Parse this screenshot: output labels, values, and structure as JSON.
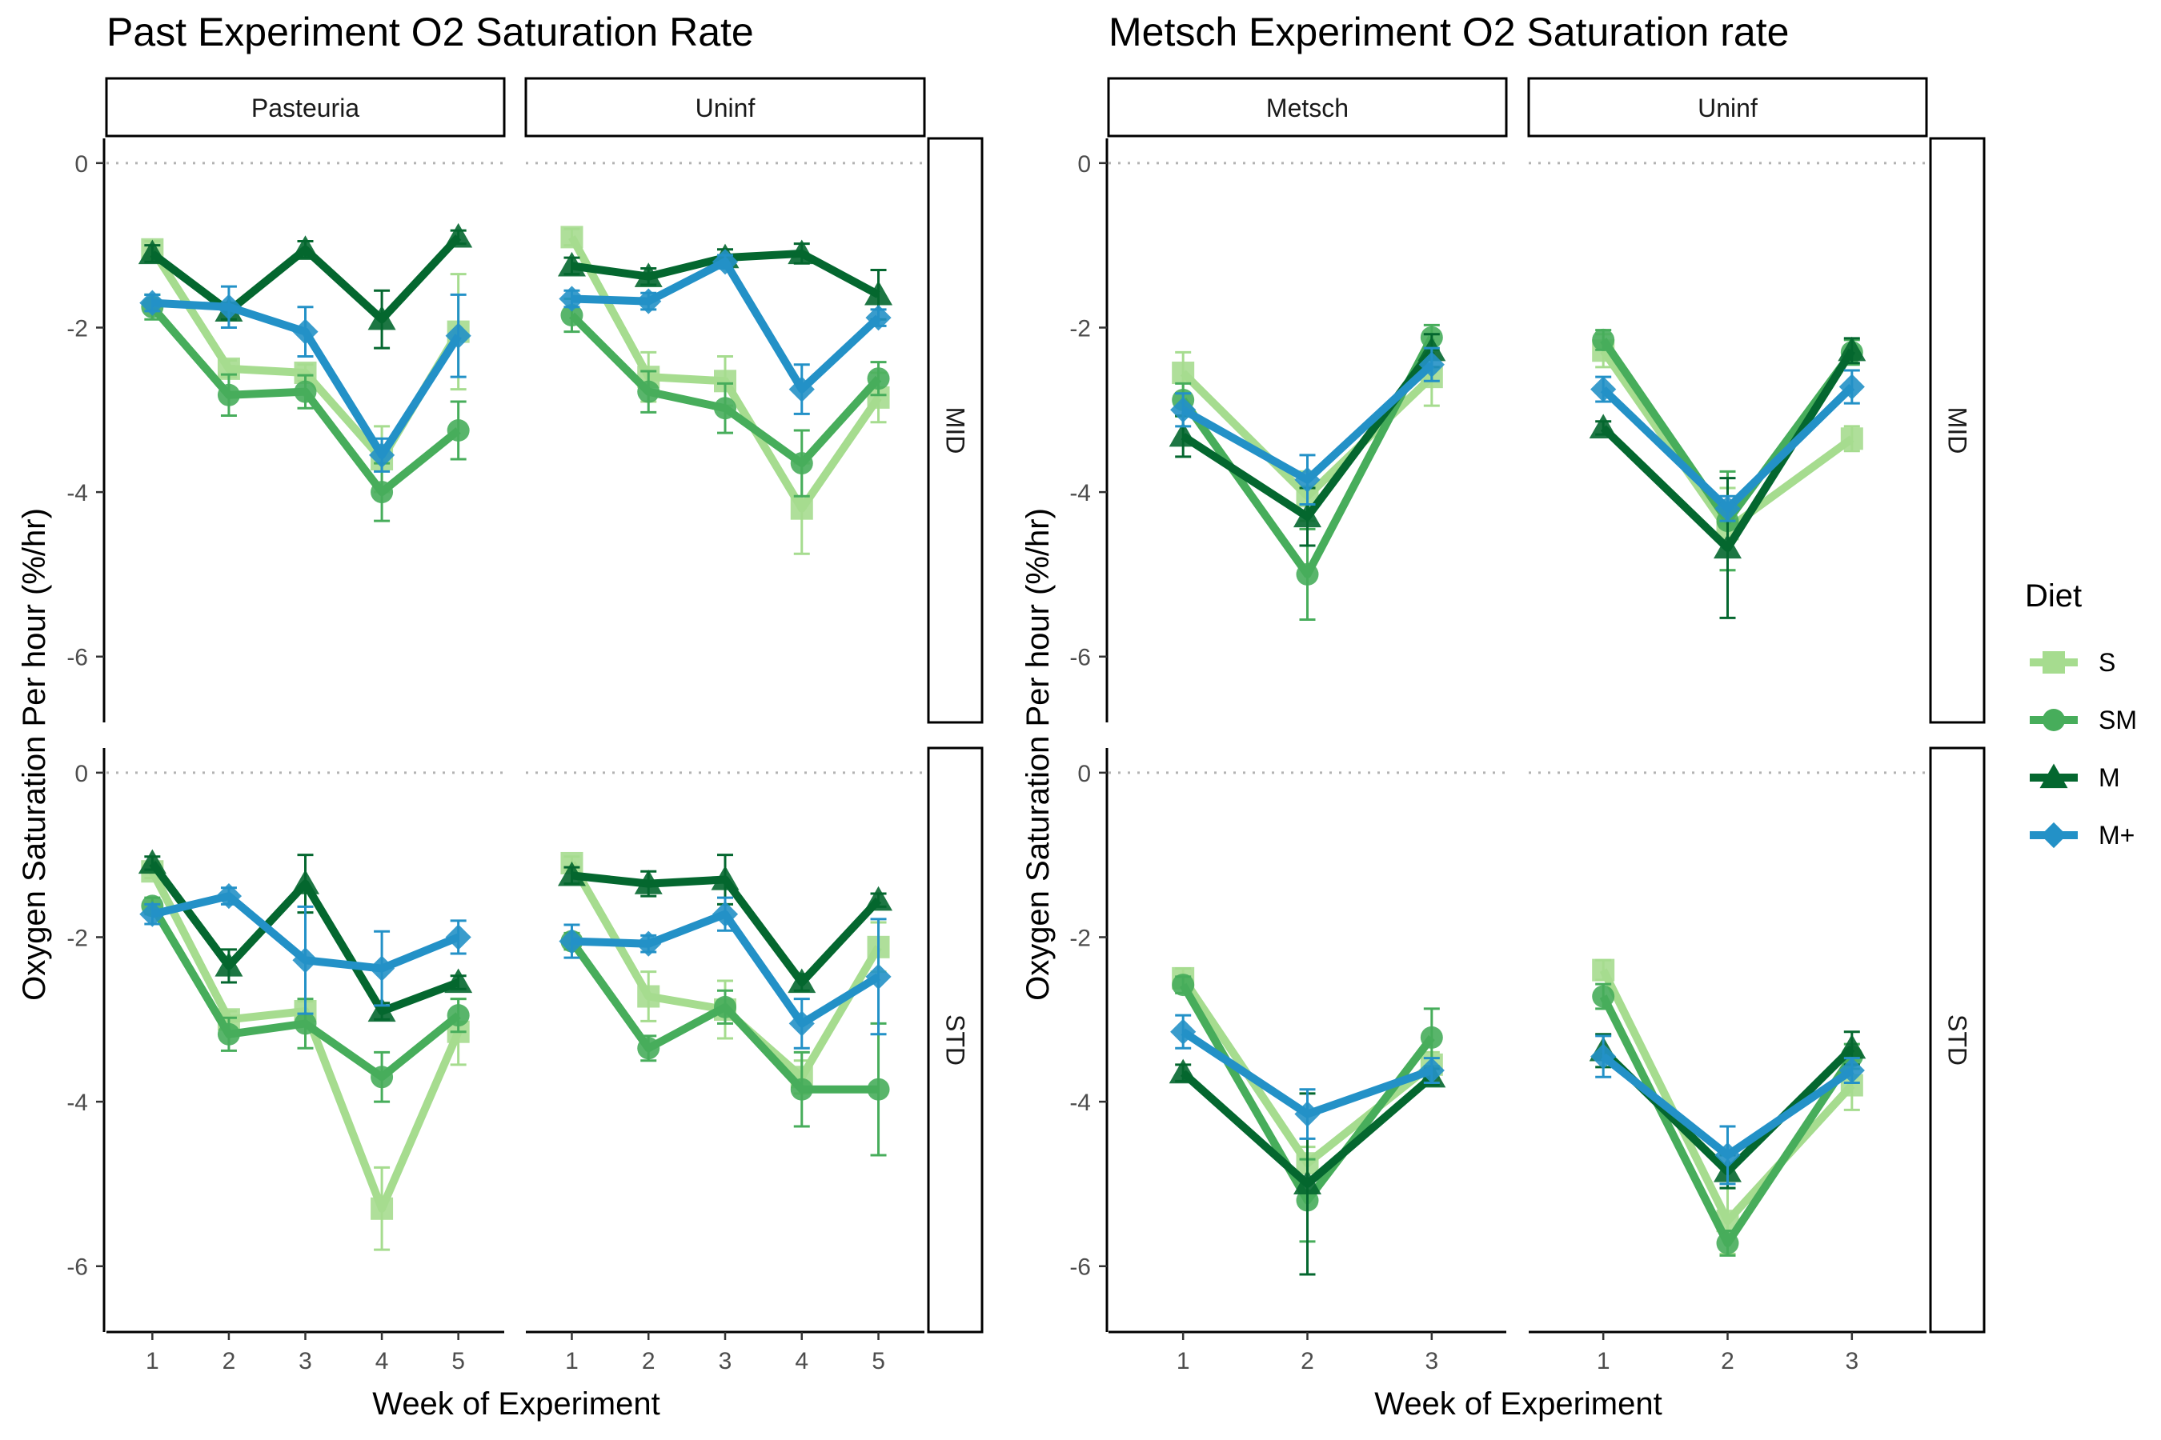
{
  "legend": {
    "title": "Diet",
    "items": [
      {
        "label": "S",
        "color": "#a6dc8f",
        "shape": "square"
      },
      {
        "label": "SM",
        "color": "#47ad5b",
        "shape": "circle"
      },
      {
        "label": "M",
        "color": "#04672f",
        "shape": "triangle"
      },
      {
        "label": "M+",
        "color": "#2391c7",
        "shape": "diamond"
      }
    ]
  },
  "chart_data": [
    {
      "type": "line",
      "title": "Past Experiment O2 Saturation Rate",
      "xlabel": "Week of Experiment",
      "ylabel": "Oxygen Saturation Per hour (%/hr)",
      "x": [
        1,
        2,
        3,
        4,
        5
      ],
      "ylim": [
        -6.8,
        0.3
      ],
      "yticks": [
        0,
        -2,
        -4,
        -6
      ],
      "reference_line": 0,
      "columns": [
        "Pasteuria",
        "Uninf"
      ],
      "rows": [
        "MID",
        "STD"
      ],
      "series_names": [
        "S",
        "SM",
        "M",
        "M+"
      ],
      "panels": [
        {
          "col": "Pasteuria",
          "row": "MID",
          "series": [
            {
              "name": "S",
              "values": [
                -1.05,
                -2.5,
                -2.55,
                -3.6,
                -2.05
              ],
              "errors": [
                0.1,
                0.1,
                0.1,
                0.4,
                0.7
              ]
            },
            {
              "name": "SM",
              "values": [
                -1.75,
                -2.82,
                -2.78,
                -4.0,
                -3.25
              ],
              "errors": [
                0.15,
                0.25,
                0.2,
                0.35,
                0.35
              ]
            },
            {
              "name": "M",
              "values": [
                -1.1,
                -1.8,
                -1.05,
                -1.9,
                -0.9
              ],
              "errors": [
                0.1,
                0.1,
                0.1,
                0.35,
                0.08
              ]
            },
            {
              "name": "M+",
              "values": [
                -1.7,
                -1.75,
                -2.05,
                -3.55,
                -2.1
              ],
              "errors": [
                0.1,
                0.25,
                0.3,
                0.2,
                0.5
              ]
            }
          ]
        },
        {
          "col": "Uninf",
          "row": "MID",
          "series": [
            {
              "name": "S",
              "values": [
                -0.9,
                -2.6,
                -2.65,
                -4.2,
                -2.85
              ],
              "errors": [
                0.1,
                0.3,
                0.3,
                0.55,
                0.3
              ]
            },
            {
              "name": "SM",
              "values": [
                -1.85,
                -2.78,
                -2.98,
                -3.65,
                -2.62
              ],
              "errors": [
                0.2,
                0.25,
                0.3,
                0.4,
                0.2
              ]
            },
            {
              "name": "M",
              "values": [
                -1.25,
                -1.38,
                -1.15,
                -1.1,
                -1.6
              ],
              "errors": [
                0.1,
                0.1,
                0.1,
                0.12,
                0.3
              ]
            },
            {
              "name": "M+",
              "values": [
                -1.65,
                -1.68,
                -1.2,
                -2.75,
                -1.88
              ],
              "errors": [
                0.1,
                0.1,
                0.08,
                0.3,
                0.1
              ]
            }
          ]
        },
        {
          "col": "Pasteuria",
          "row": "STD",
          "series": [
            {
              "name": "S",
              "values": [
                -1.2,
                -3.0,
                -2.9,
                -5.3,
                -3.15
              ],
              "errors": [
                0.08,
                0.1,
                0.12,
                0.5,
                0.4
              ]
            },
            {
              "name": "SM",
              "values": [
                -1.62,
                -3.18,
                -3.05,
                -3.7,
                -2.95
              ],
              "errors": [
                0.1,
                0.2,
                0.3,
                0.3,
                0.2
              ]
            },
            {
              "name": "M",
              "values": [
                -1.1,
                -2.35,
                -1.35,
                -2.9,
                -2.55
              ],
              "errors": [
                0.08,
                0.2,
                0.35,
                0.1,
                0.08
              ]
            },
            {
              "name": "M+",
              "values": [
                -1.72,
                -1.5,
                -2.28,
                -2.38,
                -2.0
              ],
              "errors": [
                0.12,
                0.1,
                0.65,
                0.45,
                0.2
              ]
            }
          ]
        },
        {
          "col": "Uninf",
          "row": "STD",
          "series": [
            {
              "name": "S",
              "values": [
                -1.1,
                -2.72,
                -2.88,
                -3.7,
                -2.12
              ],
              "errors": [
                0.08,
                0.3,
                0.35,
                0.2,
                0.3
              ]
            },
            {
              "name": "SM",
              "values": [
                -2.05,
                -3.35,
                -2.85,
                -3.85,
                -3.85
              ],
              "errors": [
                0.1,
                0.15,
                0.2,
                0.45,
                0.8
              ]
            },
            {
              "name": "M",
              "values": [
                -1.25,
                -1.35,
                -1.3,
                -2.55,
                -1.55
              ],
              "errors": [
                0.1,
                0.15,
                0.3,
                0.1,
                0.08
              ]
            },
            {
              "name": "M+",
              "values": [
                -2.05,
                -2.08,
                -1.72,
                -3.05,
                -2.48
              ],
              "errors": [
                0.2,
                0.1,
                0.2,
                0.3,
                0.7
              ]
            }
          ]
        }
      ]
    },
    {
      "type": "line",
      "title": "Metsch Experiment O2 Saturation rate",
      "xlabel": "Week of Experiment",
      "ylabel": "Oxygen Saturation Per hour (%/hr)",
      "x": [
        1,
        2,
        3
      ],
      "ylim": [
        -6.8,
        0.3
      ],
      "yticks": [
        0,
        -2,
        -4,
        -6
      ],
      "reference_line": 0,
      "columns": [
        "Metsch",
        "Uninf"
      ],
      "rows": [
        "MID",
        "STD"
      ],
      "series_names": [
        "S",
        "SM",
        "M",
        "M+"
      ],
      "panels": [
        {
          "col": "Metsch",
          "row": "MID",
          "series": [
            {
              "name": "S",
              "values": [
                -2.55,
                -4.05,
                -2.6
              ],
              "errors": [
                0.25,
                0.3,
                0.35
              ]
            },
            {
              "name": "SM",
              "values": [
                -2.88,
                -5.0,
                -2.12
              ],
              "errors": [
                0.2,
                0.55,
                0.15
              ]
            },
            {
              "name": "M",
              "values": [
                -3.32,
                -4.3,
                -2.28
              ],
              "errors": [
                0.25,
                0.35,
                0.2
              ]
            },
            {
              "name": "M+",
              "values": [
                -3.0,
                -3.85,
                -2.45
              ],
              "errors": [
                0.2,
                0.3,
                0.2
              ]
            }
          ]
        },
        {
          "col": "Uninf",
          "row": "MID",
          "series": [
            {
              "name": "S",
              "values": [
                -2.28,
                -4.45,
                -3.35
              ],
              "errors": [
                0.2,
                0.5,
                0.15
              ]
            },
            {
              "name": "SM",
              "values": [
                -2.15,
                -4.35,
                -2.3
              ],
              "errors": [
                0.12,
                0.6,
                0.15
              ]
            },
            {
              "name": "M",
              "values": [
                -3.22,
                -4.68,
                -2.28
              ],
              "errors": [
                0.08,
                0.85,
                0.15
              ]
            },
            {
              "name": "M+",
              "values": [
                -2.75,
                -4.2,
                -2.72
              ],
              "errors": [
                0.15,
                0.15,
                0.2
              ]
            }
          ]
        },
        {
          "col": "Metsch",
          "row": "STD",
          "series": [
            {
              "name": "S",
              "values": [
                -2.5,
                -4.75,
                -3.55
              ],
              "errors": [
                0.12,
                0.2,
                0.15
              ]
            },
            {
              "name": "SM",
              "values": [
                -2.58,
                -5.2,
                -3.22
              ],
              "errors": [
                0.1,
                0.5,
                0.35
              ]
            },
            {
              "name": "M",
              "values": [
                -3.65,
                -5.0,
                -3.7
              ],
              "errors": [
                0.1,
                1.1,
                0.1
              ]
            },
            {
              "name": "M+",
              "values": [
                -3.15,
                -4.15,
                -3.62
              ],
              "errors": [
                0.2,
                0.3,
                0.15
              ]
            }
          ]
        },
        {
          "col": "Uninf",
          "row": "STD",
          "series": [
            {
              "name": "S",
              "values": [
                -2.4,
                -5.45,
                -3.8
              ],
              "errors": [
                0.12,
                0.4,
                0.3
              ]
            },
            {
              "name": "SM",
              "values": [
                -2.72,
                -5.72,
                -3.45
              ],
              "errors": [
                0.15,
                0.15,
                0.15
              ]
            },
            {
              "name": "M",
              "values": [
                -3.38,
                -4.85,
                -3.35
              ],
              "errors": [
                0.2,
                0.2,
                0.2
              ]
            },
            {
              "name": "M+",
              "values": [
                -3.45,
                -4.65,
                -3.62
              ],
              "errors": [
                0.25,
                0.35,
                0.15
              ]
            }
          ]
        }
      ]
    }
  ]
}
